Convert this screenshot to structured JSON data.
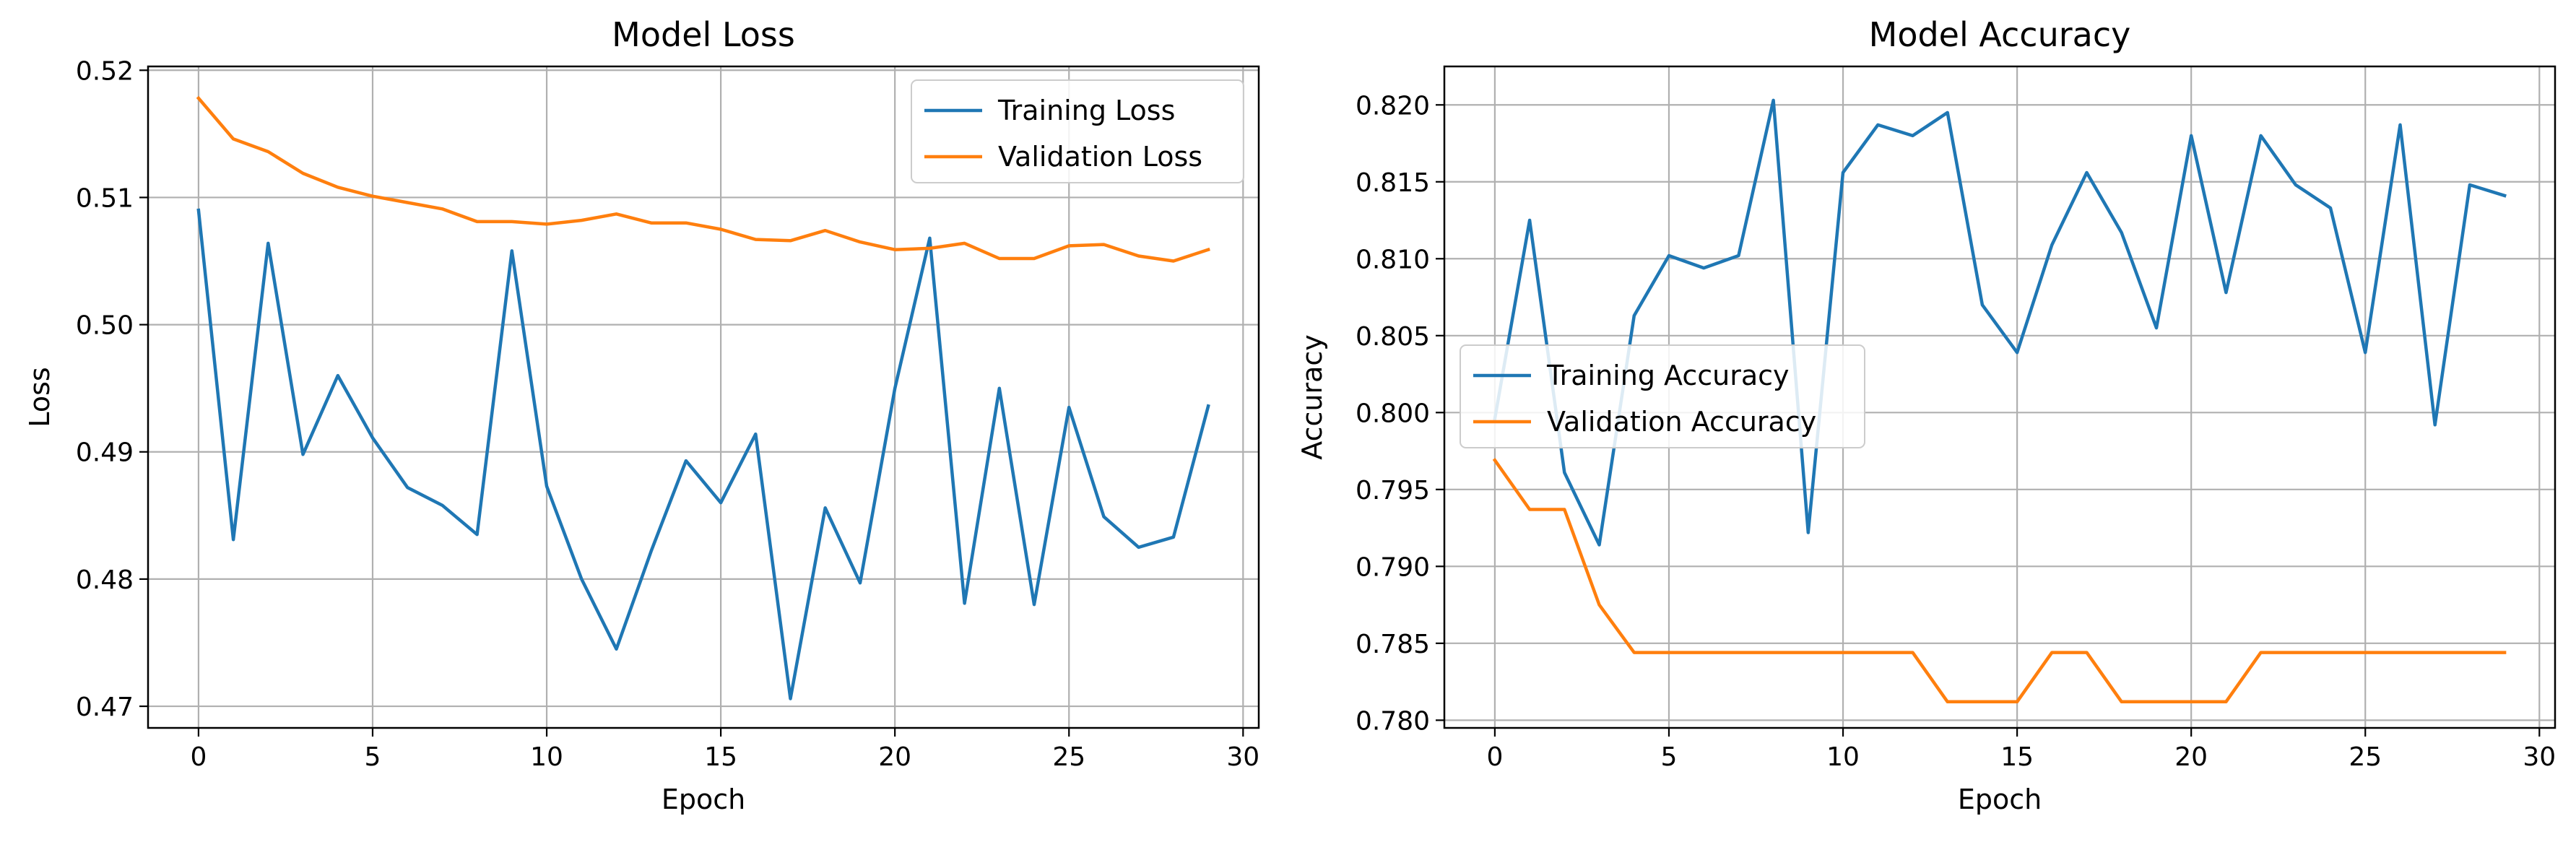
{
  "colors": {
    "training": "#1f77b4",
    "validation": "#ff7f0e",
    "grid": "#b0b0b0",
    "axes": "#000000"
  },
  "chart_data": [
    {
      "type": "line",
      "title": "Model Loss",
      "xlabel": "Epoch",
      "ylabel": "Loss",
      "xlim": [
        -1.45,
        30.45
      ],
      "ylim": [
        0.4683,
        0.5203
      ],
      "xticks": [
        0,
        5,
        10,
        15,
        20,
        25,
        30
      ],
      "xtick_labels": [
        "0",
        "5",
        "10",
        "15",
        "20",
        "25",
        "30"
      ],
      "yticks": [
        0.47,
        0.48,
        0.49,
        0.5,
        0.51,
        0.52
      ],
      "ytick_labels": [
        "0.47",
        "0.48",
        "0.49",
        "0.50",
        "0.51",
        "0.52"
      ],
      "grid": true,
      "legend_position": "upper right",
      "x": [
        0,
        1,
        2,
        3,
        4,
        5,
        6,
        7,
        8,
        9,
        10,
        11,
        12,
        13,
        14,
        15,
        16,
        17,
        18,
        19,
        20,
        21,
        22,
        23,
        24,
        25,
        26,
        27,
        28,
        29
      ],
      "series": [
        {
          "name": "Training Loss",
          "color": "#1f77b4",
          "values": [
            0.509,
            0.4831,
            0.5064,
            0.4898,
            0.496,
            0.4911,
            0.4872,
            0.4858,
            0.4835,
            0.5058,
            0.4873,
            0.48,
            0.4745,
            0.4822,
            0.4893,
            0.486,
            0.4914,
            0.4706,
            0.4856,
            0.4797,
            0.495,
            0.5068,
            0.4781,
            0.495,
            0.478,
            0.4935,
            0.4849,
            0.4825,
            0.4833,
            0.4936
          ]
        },
        {
          "name": "Validation Loss",
          "color": "#ff7f0e",
          "values": [
            0.5178,
            0.5146,
            0.5136,
            0.5119,
            0.5108,
            0.5101,
            0.5096,
            0.5091,
            0.5081,
            0.5081,
            0.5079,
            0.5082,
            0.5087,
            0.508,
            0.508,
            0.5075,
            0.5067,
            0.5066,
            0.5074,
            0.5065,
            0.5059,
            0.506,
            0.5064,
            0.5052,
            0.5052,
            0.5062,
            0.5063,
            0.5054,
            0.505,
            0.5059
          ]
        }
      ]
    },
    {
      "type": "line",
      "title": "Model Accuracy",
      "xlabel": "Epoch",
      "ylabel": "Accuracy",
      "xlim": [
        -1.45,
        30.45
      ],
      "ylim": [
        0.7795,
        0.8225
      ],
      "xticks": [
        0,
        5,
        10,
        15,
        20,
        25,
        30
      ],
      "xtick_labels": [
        "0",
        "5",
        "10",
        "15",
        "20",
        "25",
        "30"
      ],
      "yticks": [
        0.78,
        0.785,
        0.79,
        0.795,
        0.8,
        0.805,
        0.81,
        0.815,
        0.82
      ],
      "ytick_labels": [
        "0.780",
        "0.785",
        "0.790",
        "0.795",
        "0.800",
        "0.805",
        "0.810",
        "0.815",
        "0.820"
      ],
      "grid": true,
      "legend_position": "center left",
      "x": [
        0,
        1,
        2,
        3,
        4,
        5,
        6,
        7,
        8,
        9,
        10,
        11,
        12,
        13,
        14,
        15,
        16,
        17,
        18,
        19,
        20,
        21,
        22,
        23,
        24,
        25,
        26,
        27,
        28,
        29
      ],
      "series": [
        {
          "name": "Training Accuracy",
          "color": "#1f77b4",
          "values": [
            0.7996,
            0.8125,
            0.7961,
            0.7914,
            0.8063,
            0.8102,
            0.8094,
            0.8102,
            0.8203,
            0.7922,
            0.8156,
            0.8187,
            0.818,
            0.8195,
            0.807,
            0.8039,
            0.8109,
            0.8156,
            0.8117,
            0.8055,
            0.818,
            0.8078,
            0.818,
            0.8148,
            0.8133,
            0.8039,
            0.8187,
            0.7992,
            0.8148,
            0.8141
          ]
        },
        {
          "name": "Validation Accuracy",
          "color": "#ff7f0e",
          "values": [
            0.7969,
            0.7937,
            0.7937,
            0.7875,
            0.7844,
            0.7844,
            0.7844,
            0.7844,
            0.7844,
            0.7844,
            0.7844,
            0.7844,
            0.7844,
            0.7812,
            0.7812,
            0.7812,
            0.7844,
            0.7844,
            0.7812,
            0.7812,
            0.7812,
            0.7812,
            0.7844,
            0.7844,
            0.7844,
            0.7844,
            0.7844,
            0.7844,
            0.7844,
            0.7844
          ]
        }
      ]
    }
  ]
}
